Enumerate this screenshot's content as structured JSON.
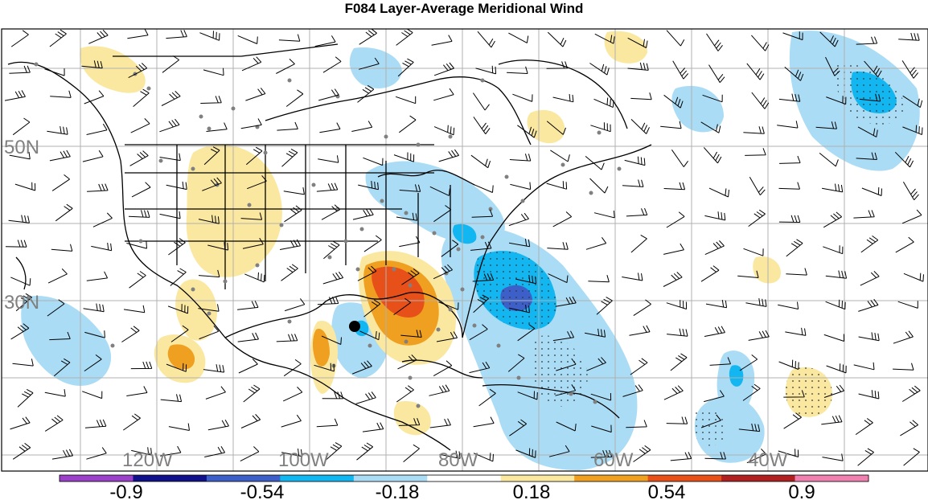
{
  "title": "F084 Layer-Average Meridional Wind",
  "map": {
    "lat_labels": [
      "50N",
      "30N"
    ],
    "lon_labels": [
      "120W",
      "100W",
      "80W",
      "60W",
      "40W"
    ],
    "storm_marker": "storm-position-dot",
    "colors": {
      "strong_neg": "#7030a0",
      "neg_3": "#1a1a8c",
      "neg_2": "#3d5fc9",
      "neg_1": "#0aa3e6",
      "neg_0": "#aadcf5",
      "neutral": "#ffffff",
      "pos_0": "#fbe8a0",
      "pos_1": "#f0a020",
      "pos_2": "#e8501a",
      "pos_3": "#b02020",
      "strong_pos": "#f080b0",
      "grid": "#a0a0a0",
      "coast": "#000000",
      "station": "#808080"
    }
  },
  "colorbar": {
    "labels": [
      "-0.9",
      "-0.54",
      "-0.18",
      "0.18",
      "0.54",
      "0.9"
    ],
    "bins": [
      "#9b40c8",
      "#10108a",
      "#3d5fc9",
      "#12b6f0",
      "#aadcf5",
      "#ffffff",
      "#fbe8a0",
      "#f0a020",
      "#e8501a",
      "#b02020",
      "#f080b0"
    ]
  }
}
